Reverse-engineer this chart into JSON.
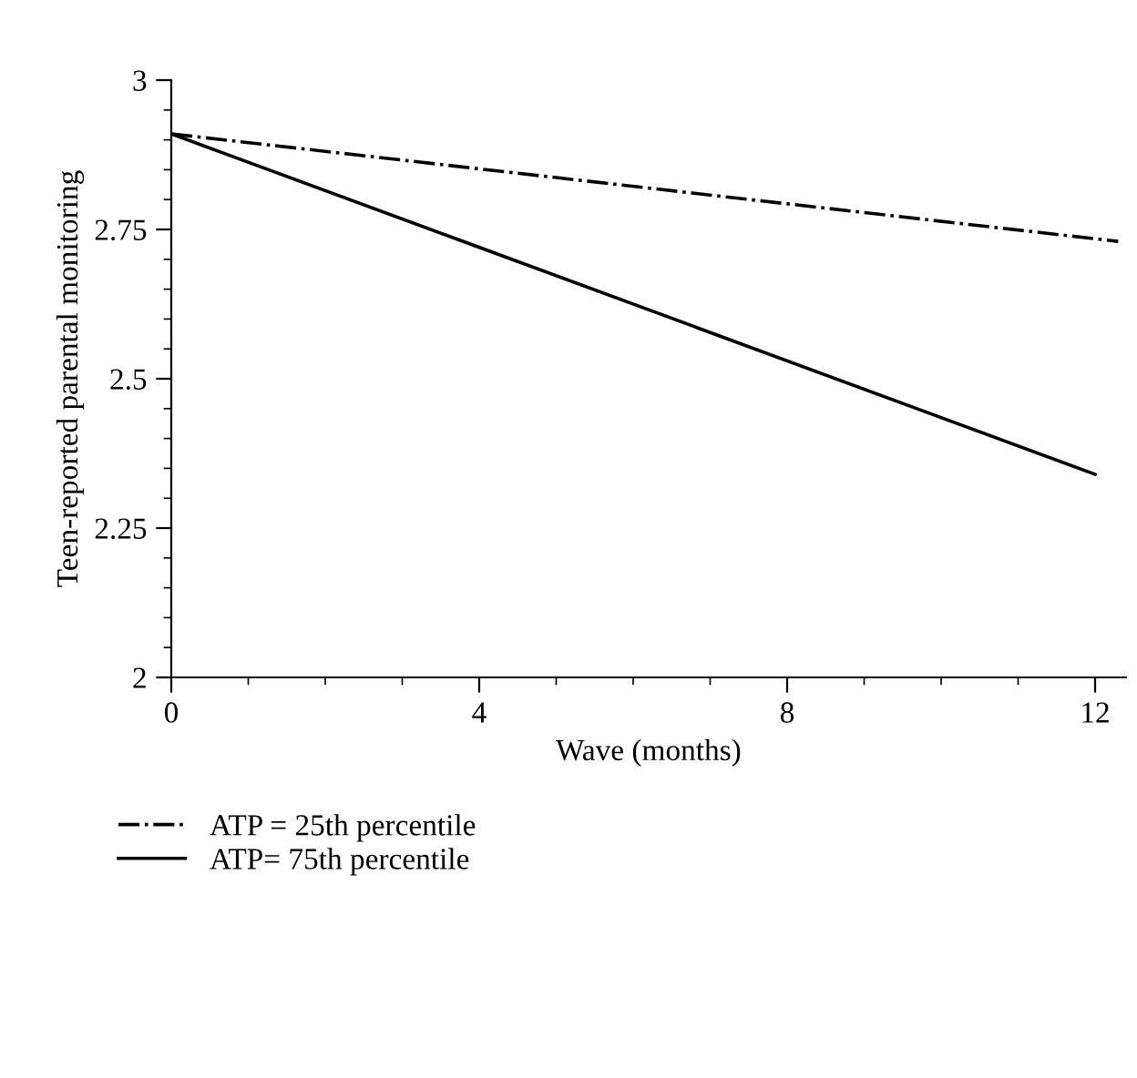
{
  "chart_data": {
    "type": "line",
    "xlabel": "Wave (months)",
    "ylabel": "Teen-reported parental monitoring",
    "xlim": [
      0,
      12.4
    ],
    "xticks": [
      0,
      4,
      8,
      12
    ],
    "ylim": [
      2,
      3
    ],
    "yticks": [
      2,
      2.25,
      2.5,
      2.75,
      3
    ],
    "grid": false,
    "legend": "bottom",
    "marker": "none",
    "series": [
      {
        "name": "ATP = 25th percentile",
        "color": "#000000",
        "x": [
          0,
          12.3
        ],
        "values": [
          2.91,
          2.73
        ],
        "line_style": "dashdot"
      },
      {
        "name": "ATP= 75th percentile",
        "color": "#000000",
        "x": [
          0,
          12
        ],
        "values": [
          2.91,
          2.34
        ],
        "line_style": "solid"
      }
    ]
  }
}
